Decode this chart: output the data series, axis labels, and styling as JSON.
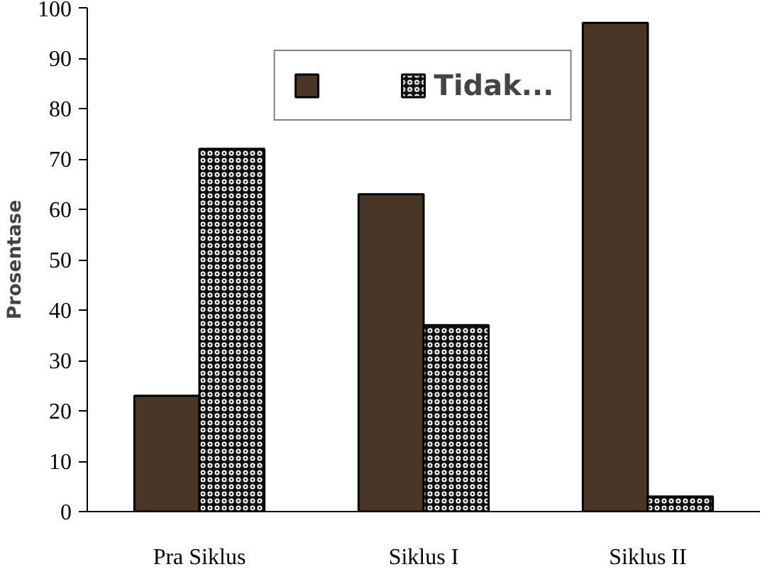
{
  "chart_data": {
    "type": "bar",
    "ylabel": "Prosentase",
    "categories": [
      "Pra Siklus",
      "Siklus I",
      "Siklus II"
    ],
    "series": [
      {
        "color": "#4a3626",
        "values": [
          23,
          63,
          97
        ]
      },
      {
        "name": "Tidak...",
        "color": "#111111",
        "values": [
          72,
          37,
          3
        ]
      }
    ],
    "ylim": [
      0,
      100
    ],
    "yticks": [
      0,
      10,
      20,
      30,
      40,
      50,
      60,
      70,
      80,
      90,
      100
    ],
    "grid": false,
    "legend": "top"
  }
}
